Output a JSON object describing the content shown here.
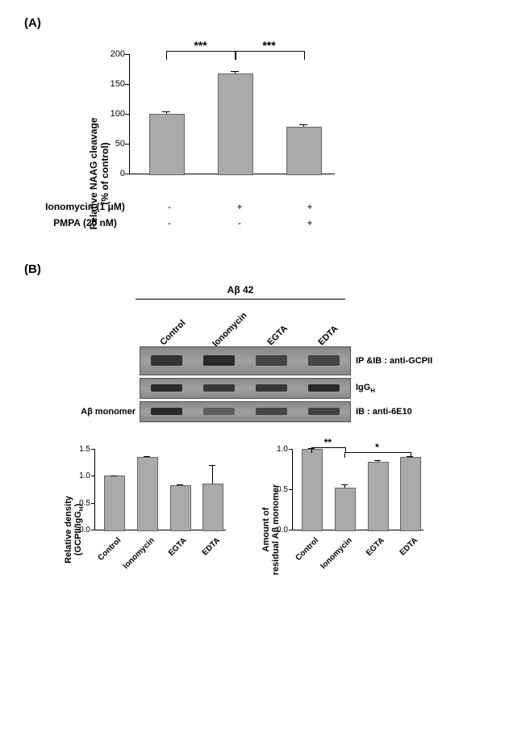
{
  "panelA": {
    "label": "(A)",
    "yaxis_title_line1": "Relative NAAG cleavage",
    "yaxis_title_line2": "(% of control)",
    "ylim": [
      0,
      200
    ],
    "ytick_step": 50,
    "bars": [
      {
        "value": 100,
        "error": 4
      },
      {
        "value": 167,
        "error": 5
      },
      {
        "value": 78,
        "error": 5
      }
    ],
    "bar_color": "#aaaaaa",
    "significance": [
      {
        "from": 0,
        "to": 1,
        "label": "***"
      },
      {
        "from": 1,
        "to": 2,
        "label": "***"
      }
    ],
    "conditions": [
      {
        "label": "Ionomycin (1 μM)",
        "values": [
          "-",
          "+",
          "+"
        ]
      },
      {
        "label": "PMPA (20 nM)",
        "values": [
          "-",
          "-",
          "+"
        ]
      }
    ]
  },
  "panelB": {
    "label": "(B)",
    "header_label": "Aβ 42",
    "lanes": [
      "Control",
      "Ionomycin",
      "EGTA",
      "EDTA"
    ],
    "gels": [
      {
        "left_label": "",
        "right_label": "IP &IB : anti-GCPII",
        "height": 34,
        "bands": [
          [
            0.9
          ],
          [
            1.0
          ],
          [
            0.7
          ],
          [
            0.7
          ]
        ]
      },
      {
        "left_label": "",
        "right_label": "IgG",
        "right_label_sub": "H",
        "height": 24,
        "bands": [
          [
            1.0
          ],
          [
            0.85
          ],
          [
            0.85
          ],
          [
            1.0
          ]
        ]
      },
      {
        "left_label": "Aβ monomer",
        "right_label": "IB : anti-6E10",
        "height": 24,
        "bands": [
          [
            1.0
          ],
          [
            0.45
          ],
          [
            0.7
          ],
          [
            0.75
          ]
        ]
      }
    ],
    "chart_left": {
      "yaxis_title_line1": "Relative density",
      "yaxis_title_line2": "(GCPII/IgG",
      "yaxis_title_sub": "H",
      "yaxis_title_close": ")",
      "ylim": [
        0.0,
        1.5
      ],
      "ytick_step": 0.5,
      "bars": [
        {
          "value": 1.0,
          "error": 0.01
        },
        {
          "value": 1.35,
          "error": 0.01
        },
        {
          "value": 0.83,
          "error": 0.01
        },
        {
          "value": 0.85,
          "error": 0.35
        }
      ]
    },
    "chart_right": {
      "yaxis_title_line1": "Amount of",
      "yaxis_title_line2": "residual Aβ monomer",
      "ylim": [
        0.0,
        1.0
      ],
      "ytick_step": 0.5,
      "bars": [
        {
          "value": 1.0,
          "error": 0.01
        },
        {
          "value": 0.52,
          "error": 0.04
        },
        {
          "value": 0.84,
          "error": 0.02
        },
        {
          "value": 0.9,
          "error": 0.01
        }
      ],
      "significance": [
        {
          "from": 0,
          "to": 1,
          "label": "**"
        },
        {
          "from": 1,
          "to": 3,
          "label": "*"
        }
      ]
    }
  }
}
